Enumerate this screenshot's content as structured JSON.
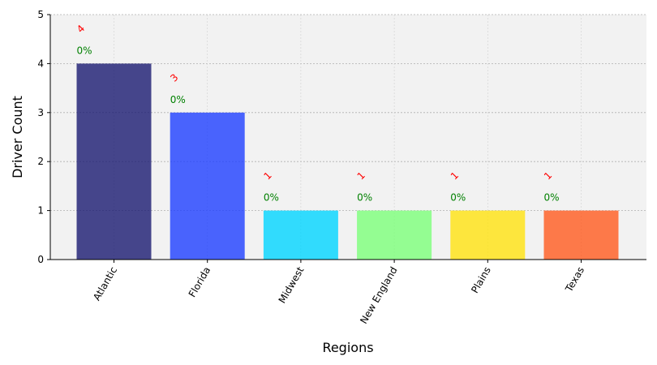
{
  "chart_data": {
    "type": "bar",
    "title": "",
    "xlabel": "Regions",
    "ylabel": "Driver Count",
    "categories": [
      "Atlantic",
      "Florida",
      "Midwest",
      "New England",
      "Plains",
      "Texas"
    ],
    "values": [
      4,
      3,
      1,
      1,
      1,
      1
    ],
    "count_labels": [
      "4",
      "3",
      "1",
      "1",
      "1",
      "1"
    ],
    "percent_labels": [
      "0%",
      "0%",
      "0%",
      "0%",
      "0%",
      "0%"
    ],
    "colors": [
      "#191970",
      "#1e3fff",
      "#00d4ff",
      "#7cff79",
      "#ffe20f",
      "#ff5a1e"
    ],
    "yticks": [
      "0",
      "1",
      "2",
      "3",
      "4",
      "5"
    ],
    "ylim": [
      0,
      5
    ],
    "grid": true,
    "plot_background": "#f2f2f2"
  }
}
